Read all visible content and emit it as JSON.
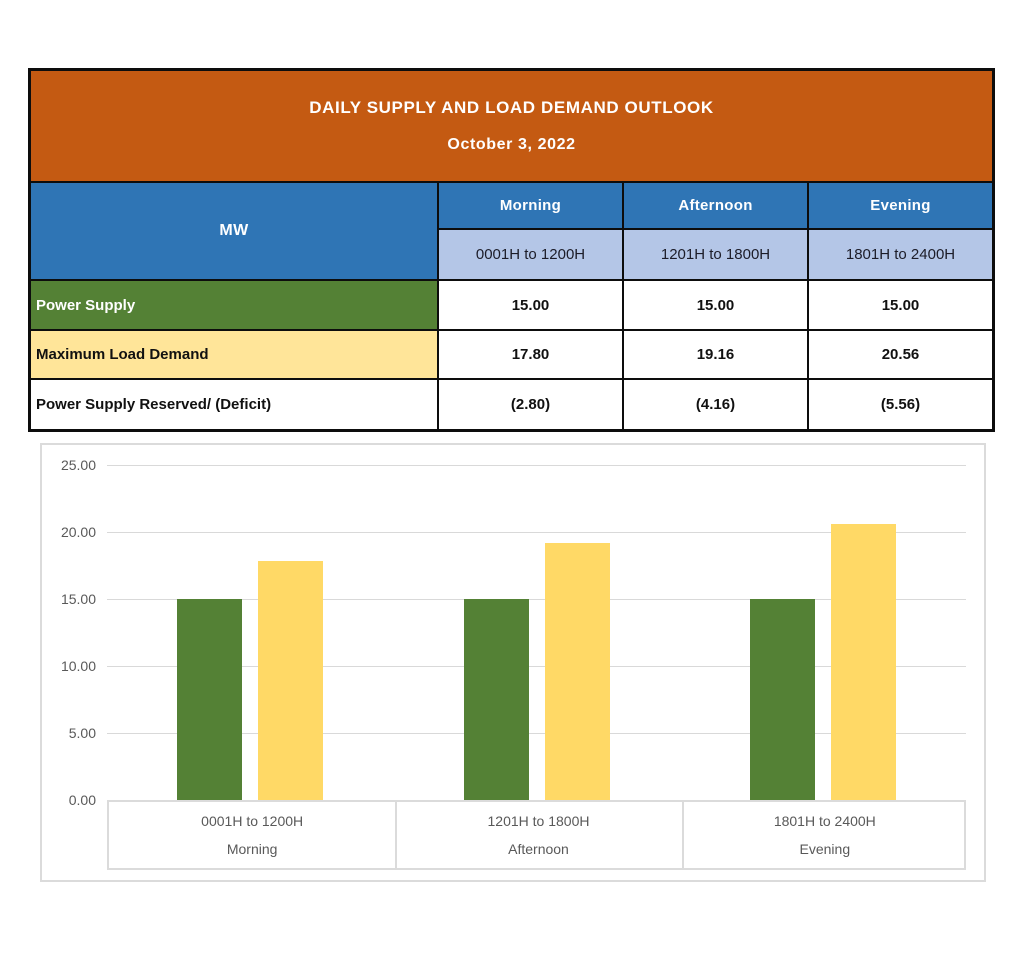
{
  "table": {
    "title": "DAILY SUPPLY AND LOAD DEMAND OUTLOOK",
    "date": "October 3, 2022",
    "unit_label": "MW",
    "periods": [
      {
        "name": "Morning",
        "hours": "0001H to 1200H"
      },
      {
        "name": "Afternoon",
        "hours": "1201H to 1800H"
      },
      {
        "name": "Evening",
        "hours": "1801H to 2400H"
      }
    ],
    "rows": [
      {
        "label": "Power Supply",
        "values": [
          "15.00",
          "15.00",
          "15.00"
        ]
      },
      {
        "label": "Maximum Load Demand",
        "values": [
          "17.80",
          "19.16",
          "20.56"
        ]
      },
      {
        "label": "Power Supply Reserved/ (Deficit)",
        "values": [
          "(2.80)",
          "(4.16)",
          "(5.56)"
        ]
      }
    ]
  },
  "colors": {
    "header_orange": "#C45A12",
    "header_blue": "#2F75B5",
    "subheader_light_blue": "#B4C6E7",
    "supply_green": "#548135",
    "demand_yellow_table": "#FFE599",
    "demand_yellow_chart": "#FFD966",
    "chart_gray_text": "#595959",
    "chart_gray_line": "#D9D9D9",
    "table_border": "#0D0D0D"
  },
  "chart_data": {
    "type": "bar",
    "categories": [
      "0001H to 1200H",
      "1201H to 1800H",
      "1801H to 2400H"
    ],
    "category_sublabels": [
      "Morning",
      "Afternoon",
      "Evening"
    ],
    "series": [
      {
        "name": "Power Supply",
        "color": "#548135",
        "values": [
          15.0,
          15.0,
          15.0
        ]
      },
      {
        "name": "Maximum Load Demand",
        "color": "#FFD966",
        "values": [
          17.8,
          19.16,
          20.56
        ]
      }
    ],
    "title": "",
    "xlabel": "",
    "ylabel": "",
    "ylim": [
      0,
      25
    ],
    "ytick_step": 5,
    "yticks": [
      "25.00",
      "20.00",
      "15.00",
      "10.00",
      "5.00",
      "0.00"
    ],
    "grid": true,
    "legend_position": "none"
  }
}
